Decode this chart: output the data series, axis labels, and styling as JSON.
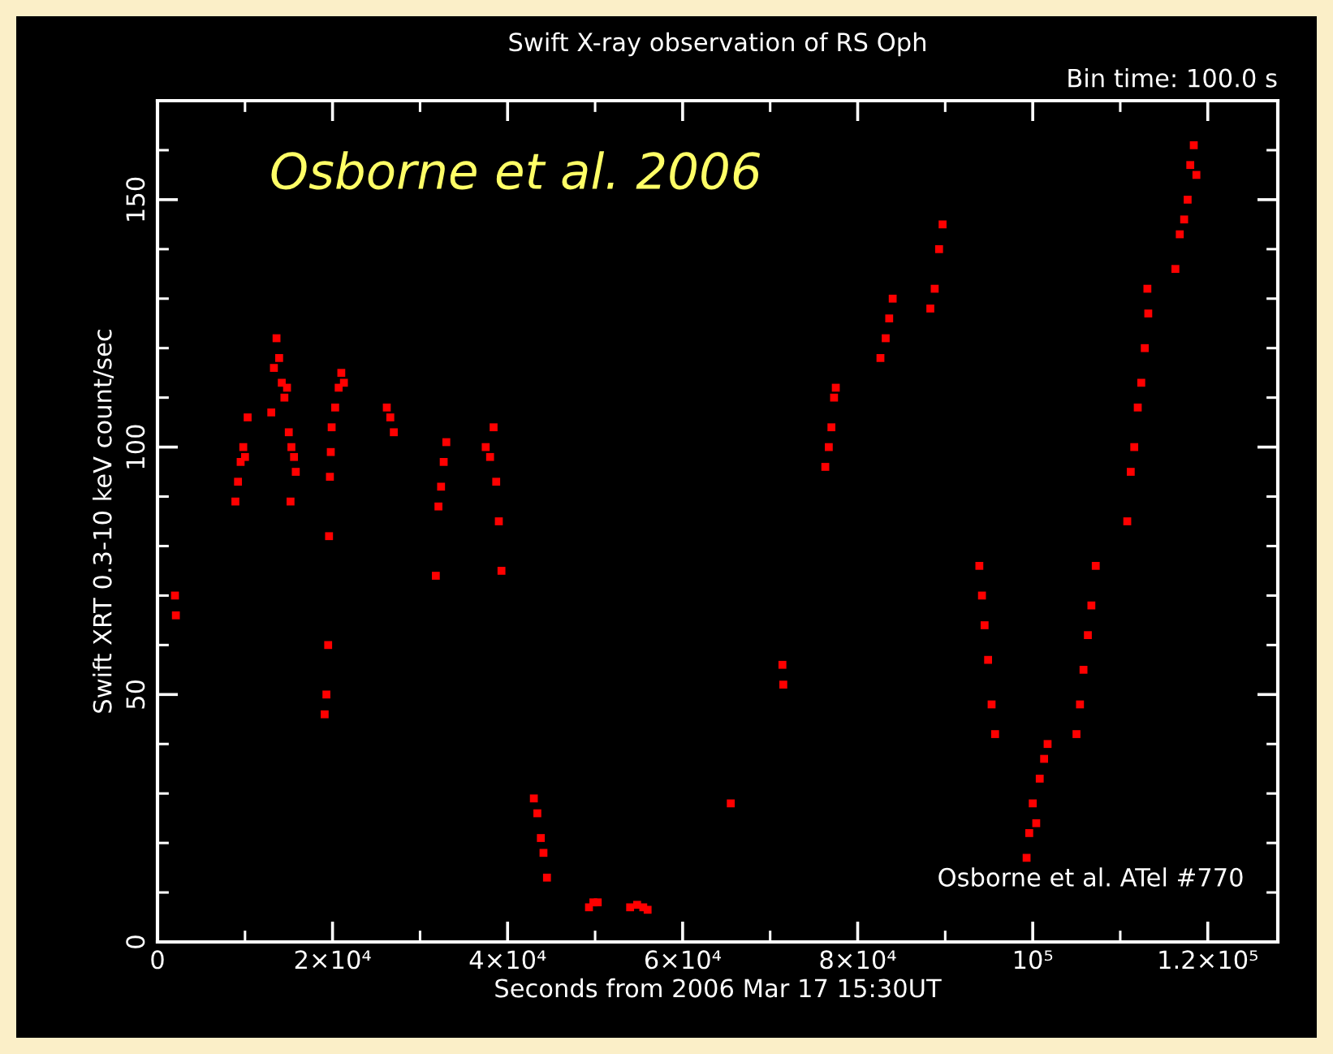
{
  "chart_data": {
    "type": "scatter",
    "title": "Swift X-ray observation of RS Oph",
    "xlabel": "Seconds from 2006 Mar 17 15:30UT",
    "ylabel": "Swift XRT 0.3-10 keV count/sec",
    "annotations": [
      "Bin time: 100.0 s",
      "Osborne et al. 2006",
      "Osborne et al. ATel #770"
    ],
    "xlim": [
      0,
      128000
    ],
    "ylim": [
      0,
      170
    ],
    "xticks": [
      0,
      {
        "value": 20000,
        "label": "2×10⁴"
      },
      {
        "value": 40000,
        "label": "4×10⁴"
      },
      {
        "value": 60000,
        "label": "6×10⁴"
      },
      {
        "value": 80000,
        "label": "8×10⁴"
      },
      {
        "value": 100000,
        "label": "10⁵"
      },
      {
        "value": 120000,
        "label": "1.2×10⁵"
      }
    ],
    "yticks": [
      0,
      50,
      100,
      150
    ],
    "grid": false,
    "legend": false,
    "marker": "square",
    "series": [
      {
        "color": "#ff0000",
        "x": [
          2000,
          2100,
          8900,
          9200,
          9500,
          9800,
          10000,
          10300,
          13000,
          13300,
          13600,
          13900,
          14200,
          14500,
          14800,
          15000,
          15200,
          15300,
          15600,
          15800,
          19100,
          19300,
          19500,
          19600,
          19700,
          19800,
          19900,
          20300,
          20700,
          21000,
          21300,
          26200,
          26600,
          27000,
          31800,
          32100,
          32400,
          32700,
          33000,
          37500,
          38000,
          38400,
          38700,
          39000,
          39300,
          43000,
          43400,
          43800,
          44100,
          44500,
          49300,
          49800,
          50300,
          54000,
          54800,
          55500,
          56000,
          65500,
          71400,
          71500,
          76300,
          76700,
          77000,
          77300,
          77500,
          82600,
          83200,
          83600,
          84000,
          88300,
          88800,
          89300,
          89700,
          93900,
          94200,
          94500,
          94900,
          95300,
          95700,
          99300,
          99600,
          100000,
          100400,
          100800,
          101300,
          101700,
          105000,
          105400,
          105800,
          106300,
          106700,
          107200,
          110800,
          111200,
          111600,
          112000,
          112400,
          112800,
          113100,
          113200,
          116300,
          116800,
          117300,
          117700,
          118000,
          118400,
          118700
        ],
        "values": [
          70,
          66,
          89,
          93,
          97,
          100,
          98,
          106,
          107,
          116,
          122,
          118,
          113,
          110,
          112,
          103,
          89,
          100,
          98,
          95,
          46,
          50,
          60,
          82,
          94,
          99,
          104,
          108,
          112,
          115,
          113,
          108,
          106,
          103,
          74,
          88,
          92,
          97,
          101,
          100,
          98,
          104,
          93,
          85,
          75,
          29,
          26,
          21,
          18,
          13,
          7,
          8,
          8,
          7,
          7.5,
          7,
          6.5,
          28,
          56,
          52,
          96,
          100,
          104,
          110,
          112,
          118,
          122,
          126,
          130,
          128,
          132,
          140,
          145,
          76,
          70,
          64,
          57,
          48,
          42,
          17,
          22,
          28,
          24,
          33,
          37,
          40,
          42,
          48,
          55,
          62,
          68,
          76,
          85,
          95,
          100,
          108,
          113,
          120,
          132,
          127,
          136,
          143,
          146,
          150,
          157,
          161,
          155
        ]
      }
    ]
  }
}
